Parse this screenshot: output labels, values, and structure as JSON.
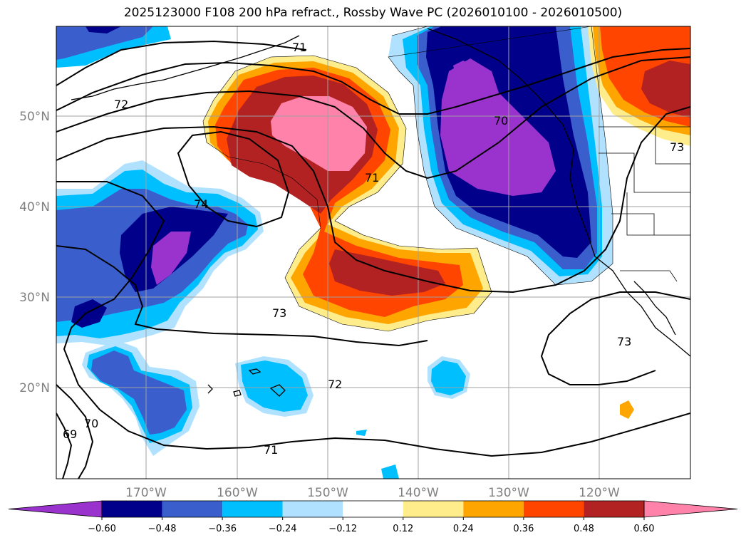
{
  "title": "2025123000 F108 200 hPa refract., Rossby Wave PC (2026010100 - 2026010500)",
  "axes": {
    "lon_labels": [
      "170°W",
      "160°W",
      "150°W",
      "140°W",
      "130°W",
      "120°W"
    ],
    "lat_labels": [
      "50°N",
      "40°N",
      "30°N",
      "20°N"
    ]
  },
  "colorbar": {
    "levels": [
      "-0.60",
      "-0.48",
      "-0.36",
      "-0.24",
      "-0.12",
      "0.12",
      "0.24",
      "0.36",
      "0.48",
      "0.60"
    ],
    "colors": [
      "#9a32cd",
      "#00008b",
      "#3a5fcd",
      "#00bfff",
      "#b0e2ff",
      "#ffffff",
      "#ffec8b",
      "#ffa500",
      "#ff4500",
      "#b22222",
      "#ff82ab"
    ]
  },
  "contour_labels": [
    "72",
    "74",
    "71",
    "70",
    "71",
    "73",
    "72",
    "71",
    "70",
    "69",
    "73",
    "73"
  ],
  "map": {
    "extent_lon": [
      -180,
      -110
    ],
    "extent_lat": [
      10,
      60
    ],
    "grid": "on",
    "coastlines": "on",
    "state_borders": "on"
  }
}
